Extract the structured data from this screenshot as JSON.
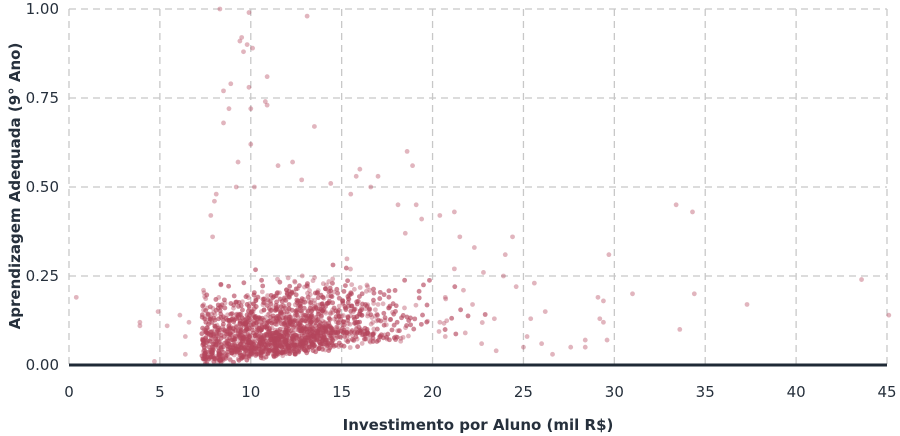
{
  "colors": {
    "point": "#b5475c",
    "baseline": "#1f2a36",
    "grid": "#c8c8c8",
    "text": "#26303c"
  },
  "chart_data": {
    "type": "scatter",
    "title": "",
    "xlabel": "Investimento por Aluno (mil R$)",
    "ylabel": "Aprendizagem Adequada (9° Ano)",
    "xlim": [
      0,
      45
    ],
    "ylim": [
      0,
      1
    ],
    "x_ticks": [
      0,
      5,
      10,
      15,
      20,
      25,
      30,
      35,
      40,
      45
    ],
    "x_tick_labels": [
      "0",
      "5",
      "10",
      "15",
      "20",
      "25",
      "30",
      "35",
      "40",
      "45"
    ],
    "y_ticks": [
      0,
      0.25,
      0.5,
      0.75,
      1
    ],
    "y_tick_labels": [
      "0.00",
      "0.25",
      "0.50",
      "0.75",
      "1.00"
    ],
    "grid": true,
    "legend": false,
    "point_opacity": 0.4,
    "series": [
      {
        "points": [
          [
            0.4,
            0.19
          ],
          [
            3.9,
            0.12
          ],
          [
            3.9,
            0.11
          ],
          [
            4.7,
            0.01
          ],
          [
            4.9,
            0.15
          ],
          [
            5.4,
            0.11
          ],
          [
            6.1,
            0.14
          ],
          [
            6.6,
            0.12
          ],
          [
            6.4,
            0.08
          ],
          [
            6.4,
            0.03
          ],
          [
            7.4,
            0.21
          ],
          [
            7.6,
            0.16
          ],
          [
            7.9,
            0.36
          ],
          [
            7.8,
            0.42
          ],
          [
            8.1,
            0.48
          ],
          [
            8.0,
            0.46
          ],
          [
            8.3,
            1.0
          ],
          [
            8.5,
            0.68
          ],
          [
            8.5,
            0.77
          ],
          [
            8.8,
            0.72
          ],
          [
            8.9,
            0.79
          ],
          [
            9.2,
            0.5
          ],
          [
            9.4,
            0.91
          ],
          [
            9.5,
            0.92
          ],
          [
            9.6,
            0.88
          ],
          [
            9.8,
            0.9
          ],
          [
            10.1,
            0.89
          ],
          [
            9.9,
            0.99
          ],
          [
            10.0,
            0.72
          ],
          [
            9.9,
            0.78
          ],
          [
            10.8,
            0.74
          ],
          [
            10.9,
            0.73
          ],
          [
            10.9,
            0.81
          ],
          [
            9.3,
            0.57
          ],
          [
            10.0,
            0.62
          ],
          [
            10.2,
            0.5
          ],
          [
            11.5,
            0.56
          ],
          [
            12.3,
            0.57
          ],
          [
            13.1,
            0.98
          ],
          [
            13.5,
            0.67
          ],
          [
            12.8,
            0.52
          ],
          [
            14.4,
            0.51
          ],
          [
            15.5,
            0.48
          ],
          [
            15.8,
            0.53
          ],
          [
            16.0,
            0.55
          ],
          [
            16.6,
            0.5
          ],
          [
            17.0,
            0.53
          ],
          [
            18.1,
            0.45
          ],
          [
            18.6,
            0.6
          ],
          [
            18.9,
            0.56
          ],
          [
            19.1,
            0.45
          ],
          [
            18.5,
            0.37
          ],
          [
            19.4,
            0.41
          ],
          [
            20.4,
            0.42
          ],
          [
            21.2,
            0.43
          ],
          [
            21.5,
            0.36
          ],
          [
            22.3,
            0.33
          ],
          [
            22.8,
            0.26
          ],
          [
            23.9,
            0.25
          ],
          [
            24.4,
            0.36
          ],
          [
            24.0,
            0.31
          ],
          [
            24.6,
            0.22
          ],
          [
            25.6,
            0.23
          ],
          [
            26.2,
            0.15
          ],
          [
            25.4,
            0.13
          ],
          [
            25.2,
            0.08
          ],
          [
            25.0,
            0.05
          ],
          [
            23.4,
            0.13
          ],
          [
            22.2,
            0.17
          ],
          [
            21.7,
            0.21
          ],
          [
            21.2,
            0.27
          ],
          [
            20.7,
            0.19
          ],
          [
            20.4,
            0.12
          ],
          [
            20.7,
            0.08
          ],
          [
            21.8,
            0.09
          ],
          [
            22.7,
            0.06
          ],
          [
            23.5,
            0.04
          ],
          [
            26.0,
            0.06
          ],
          [
            26.6,
            0.03
          ],
          [
            27.6,
            0.05
          ],
          [
            29.1,
            0.19
          ],
          [
            29.2,
            0.13
          ],
          [
            29.7,
            0.31
          ],
          [
            29.4,
            0.12
          ],
          [
            29.6,
            0.07
          ],
          [
            31.0,
            0.2
          ],
          [
            33.4,
            0.45
          ],
          [
            33.6,
            0.1
          ],
          [
            34.3,
            0.43
          ],
          [
            34.4,
            0.2
          ],
          [
            37.3,
            0.17
          ],
          [
            43.6,
            0.24
          ],
          [
            45.1,
            0.14
          ],
          [
            28.4,
            0.05
          ],
          [
            28.4,
            0.07
          ],
          [
            29.4,
            0.18
          ]
        ]
      }
    ]
  }
}
